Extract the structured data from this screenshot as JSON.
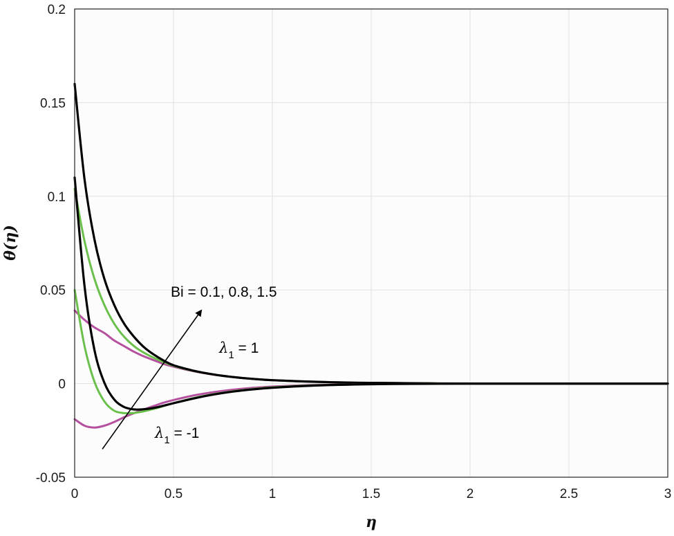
{
  "chart_data": {
    "type": "line",
    "title": "",
    "xlabel": "η",
    "ylabel": "θ(η)",
    "xlim": [
      0,
      3
    ],
    "ylim": [
      -0.05,
      0.2
    ],
    "x_ticks": [
      "0",
      "0.5",
      "1",
      "1.5",
      "2",
      "2.5",
      "3"
    ],
    "y_ticks": [
      "-0.05",
      "0",
      "0.05",
      "0.1",
      "0.15",
      "0.2"
    ],
    "x_tick_values": [
      0,
      0.5,
      1,
      1.5,
      2,
      2.5,
      3
    ],
    "y_tick_values": [
      -0.05,
      0,
      0.05,
      0.1,
      0.15,
      0.2
    ],
    "grid": true,
    "x": [
      0,
      0.05,
      0.1,
      0.15,
      0.2,
      0.25,
      0.3,
      0.35,
      0.4,
      0.45,
      0.5,
      0.6,
      0.7,
      0.8,
      0.9,
      1.0,
      1.2,
      1.4,
      1.6,
      1.8,
      2.0,
      2.5,
      3.0
    ],
    "series": [
      {
        "color": "#b5509e",
        "values": [
          0.039,
          0.034,
          0.03,
          0.027,
          0.023,
          0.02,
          0.017,
          0.0145,
          0.0125,
          0.0105,
          0.009,
          0.0066,
          0.0048,
          0.0035,
          0.0025,
          0.0018,
          0.001,
          0.0005,
          0.0003,
          0.0001,
          0.0,
          0.0,
          0.0
        ]
      },
      {
        "color": "#6ac04b",
        "values": [
          0.104,
          0.076,
          0.056,
          0.042,
          0.032,
          0.025,
          0.02,
          0.0165,
          0.0138,
          0.0115,
          0.0095,
          0.0068,
          0.0049,
          0.0035,
          0.0025,
          0.0018,
          0.001,
          0.0005,
          0.0003,
          0.0001,
          0.0,
          0.0,
          0.0
        ]
      },
      {
        "color": "#000000",
        "values": [
          0.16,
          0.109,
          0.077,
          0.056,
          0.042,
          0.032,
          0.025,
          0.0195,
          0.0155,
          0.0123,
          0.0098,
          0.0069,
          0.0049,
          0.0035,
          0.0025,
          0.0018,
          0.001,
          0.0005,
          0.0003,
          0.0001,
          0.0,
          0.0,
          0.0
        ]
      },
      {
        "color": "#b5509e",
        "values": [
          -0.019,
          -0.0225,
          -0.0235,
          -0.0225,
          -0.0205,
          -0.018,
          -0.0158,
          -0.0138,
          -0.012,
          -0.0102,
          -0.0088,
          -0.0064,
          -0.0046,
          -0.0033,
          -0.0023,
          -0.0016,
          -0.0008,
          -0.0004,
          -0.0002,
          -0.0001,
          0.0,
          0.0,
          0.0
        ]
      },
      {
        "color": "#6ac04b",
        "values": [
          0.05,
          0.02,
          0.001,
          -0.0095,
          -0.0145,
          -0.0158,
          -0.0157,
          -0.0148,
          -0.0135,
          -0.012,
          -0.0105,
          -0.0078,
          -0.0057,
          -0.0041,
          -0.0029,
          -0.002,
          -0.001,
          -0.0005,
          -0.0002,
          -0.0001,
          0.0,
          0.0,
          0.0
        ]
      },
      {
        "color": "#000000",
        "values": [
          0.11,
          0.052,
          0.018,
          0.0005,
          -0.0085,
          -0.0125,
          -0.0138,
          -0.0137,
          -0.013,
          -0.0118,
          -0.0105,
          -0.008,
          -0.0059,
          -0.0043,
          -0.0031,
          -0.0022,
          -0.0011,
          -0.0005,
          -0.0002,
          -0.0001,
          0.0,
          0.0,
          0.0
        ]
      }
    ],
    "annotations": {
      "bi_text": "Bi = 0.1, 0.8, 1.5",
      "lambda_symbol": "λ",
      "lambda_sub": "1",
      "lambda_pos_rest": " = 1",
      "lambda_neg_rest": " = -1"
    },
    "arrow": {
      "from": [
        0.14,
        -0.035
      ],
      "to": [
        0.64,
        0.039
      ]
    },
    "colors": {
      "plot_bg": "#fcfcfc",
      "grid": "#e1e1e1",
      "axis": "#222222"
    }
  }
}
